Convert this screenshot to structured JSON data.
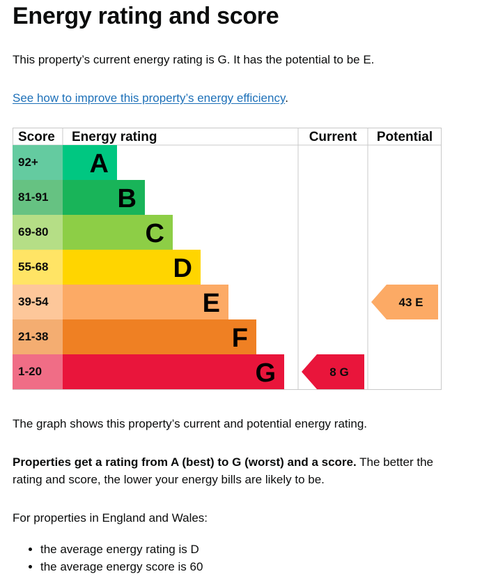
{
  "page": {
    "title": "Energy rating and score",
    "intro": "This property’s current energy rating is G. It has the potential to be E.",
    "improve_link": "See how to improve this property’s energy efficiency",
    "improve_link_suffix": ".",
    "graph_note": "The graph shows this property’s current and potential energy rating.",
    "rating_bold": "Properties get a rating from A (best) to G (worst) and a score.",
    "rating_rest": " The better the rating and score, the lower your energy bills are likely to be.",
    "england_wales": "For properties in England and Wales:",
    "bullets": [
      "the average energy rating is D",
      "the average energy score is 60"
    ]
  },
  "chart_data": {
    "type": "bar",
    "headers": {
      "score": "Score",
      "rating": "Energy rating",
      "current": "Current",
      "potential": "Potential"
    },
    "bands": [
      {
        "score": "92+",
        "letter": "A",
        "color": "#00c781",
        "score_color": "#64cba0"
      },
      {
        "score": "81-91",
        "letter": "B",
        "color": "#19b459",
        "score_color": "#66c282"
      },
      {
        "score": "69-80",
        "letter": "C",
        "color": "#8dce46",
        "score_color": "#b5de86"
      },
      {
        "score": "55-68",
        "letter": "D",
        "color": "#ffd500",
        "score_color": "#ffe465"
      },
      {
        "score": "39-54",
        "letter": "E",
        "color": "#fcaa65",
        "score_color": "#fdc79a"
      },
      {
        "score": "21-38",
        "letter": "F",
        "color": "#ef8023",
        "score_color": "#f4ad71"
      },
      {
        "score": "1-20",
        "letter": "G",
        "color": "#e9153b",
        "score_color": "#f06d86"
      }
    ],
    "current": {
      "score": 8,
      "band": "G",
      "label": "8 G",
      "color": "#e9153b"
    },
    "potential": {
      "score": 43,
      "band": "E",
      "label": "43 E",
      "color": "#fcaa65"
    }
  }
}
